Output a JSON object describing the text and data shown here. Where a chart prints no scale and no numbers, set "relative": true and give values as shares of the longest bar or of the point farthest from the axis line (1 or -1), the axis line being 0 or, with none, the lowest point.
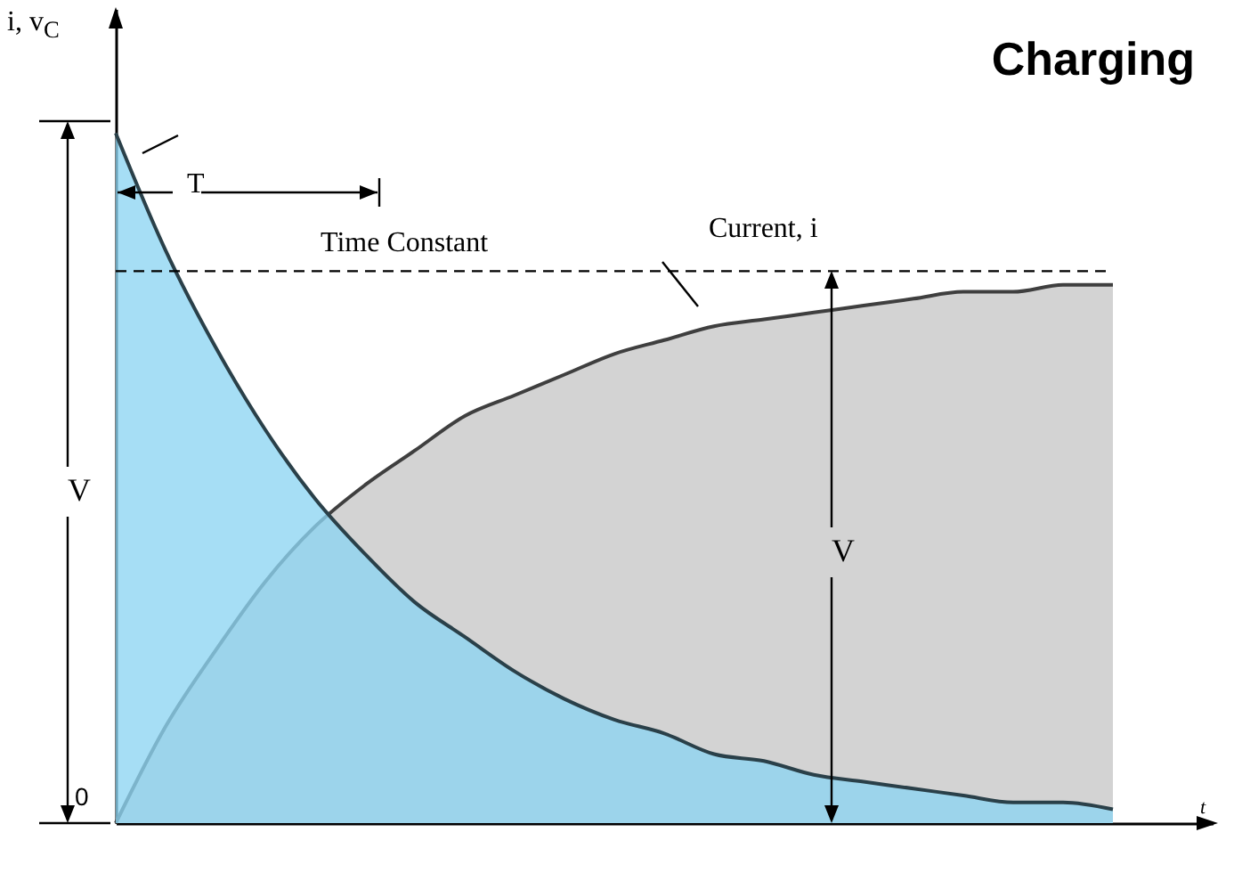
{
  "chart_data": {
    "type": "area",
    "title": "Charging",
    "ylabel": "i, v$_{C}$",
    "xlabel": "t",
    "relative": true,
    "grid": false,
    "categories": [
      null,
      null,
      null,
      null,
      null,
      null,
      null,
      null,
      null,
      null,
      null,
      null,
      null,
      null,
      null,
      null,
      null,
      null,
      null,
      null,
      null
    ],
    "series": [
      {
        "color": "#d3d3d3",
        "values": [
          0,
          0.14,
          0.25,
          0.35,
          0.43,
          0.49,
          0.54,
          0.59,
          0.62,
          0.65,
          0.68,
          0.7,
          0.72,
          0.73,
          0.74,
          0.75,
          0.76,
          0.77,
          0.77,
          0.78,
          0.78
        ]
      },
      {
        "color": "#8dd5f2",
        "values": [
          1,
          0.83,
          0.69,
          0.57,
          0.47,
          0.39,
          0.32,
          0.27,
          0.22,
          0.18,
          0.15,
          0.13,
          0.1,
          0.09,
          0.07,
          0.06,
          0.05,
          0.04,
          0.03,
          0.03,
          0.02
        ]
      }
    ],
    "ref_lines": [
      {
        "axis": "y",
        "value": 0.8,
        "line_style": "dashed",
        "color": "#000000"
      }
    ],
    "annotations": [
      "T",
      "Time Constant",
      "Current, i",
      "V",
      "V",
      "0"
    ]
  }
}
